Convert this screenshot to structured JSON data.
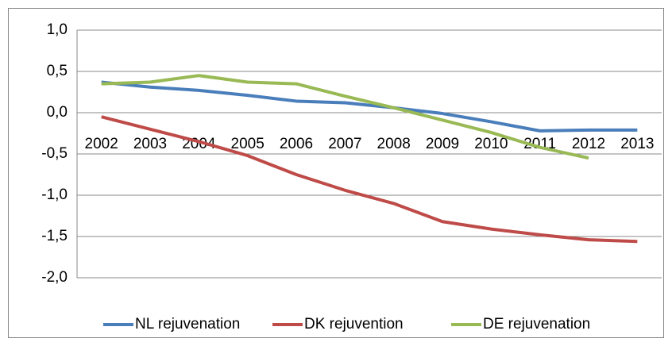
{
  "chart_data": {
    "type": "line",
    "categories": [
      "2002",
      "2003",
      "2004",
      "2005",
      "2006",
      "2007",
      "2008",
      "2009",
      "2010",
      "2011",
      "2012",
      "2013"
    ],
    "series": [
      {
        "name": "NL rejuvenation",
        "color": "#4a7ebb",
        "values": [
          0.37,
          0.31,
          0.27,
          0.21,
          0.14,
          0.12,
          0.06,
          -0.01,
          -0.11,
          -0.22,
          -0.21,
          -0.21
        ]
      },
      {
        "name": "DK rejuvention",
        "color": "#be4b48",
        "values": [
          -0.05,
          -0.2,
          -0.35,
          -0.52,
          -0.75,
          -0.94,
          -1.1,
          -1.32,
          -1.41,
          -1.48,
          -1.54,
          -1.56
        ]
      },
      {
        "name": "DE rejuvenation",
        "color": "#98b954",
        "values": [
          0.35,
          0.37,
          0.45,
          0.37,
          0.35,
          0.2,
          0.06,
          -0.09,
          -0.24,
          -0.42,
          -0.55,
          null
        ]
      }
    ],
    "ylim": [
      -2,
      1
    ],
    "yticks": [
      {
        "value": -2,
        "label": "-2,0"
      },
      {
        "value": -1.5,
        "label": "-1,5"
      },
      {
        "value": -1,
        "label": "-1,0"
      },
      {
        "value": -0.5,
        "label": "-0,5"
      },
      {
        "value": 0,
        "label": "0,0"
      },
      {
        "value": 0.5,
        "label": "0,5"
      },
      {
        "value": 1,
        "label": "1,0"
      }
    ],
    "grid": true,
    "legend": "bottom"
  }
}
